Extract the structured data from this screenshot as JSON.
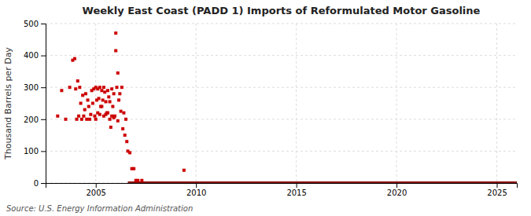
{
  "chart_data": {
    "type": "scatter",
    "title": "Weekly East Coast (PADD 1) Imports of Reformulated Motor Gasoline",
    "ylabel": "Thousand Barrels per Day",
    "annotations": [
      "Source: U.S. Energy Information Administration"
    ],
    "xlim": [
      2002.5,
      2026
    ],
    "ylim": [
      0,
      500
    ],
    "xticks": [
      2005,
      2010,
      2015,
      2020,
      2025
    ],
    "yticks": [
      0,
      100,
      200,
      300,
      400,
      500
    ],
    "grid": true,
    "series": [
      {
        "type": "line",
        "color": "#8b0000",
        "line_style": "solid",
        "x": [
          2006.6,
          2026
        ],
        "values": [
          2,
          2
        ]
      },
      {
        "type": "scatter",
        "color": "#cc0000",
        "marker": "square",
        "x": [
          2003.1,
          2003.3,
          2003.5,
          2003.7,
          2003.85,
          2003.95,
          2004.0,
          2004.05,
          2004.1,
          2004.15,
          2004.2,
          2004.25,
          2004.3,
          2004.35,
          2004.4,
          2004.45,
          2004.5,
          2004.55,
          2004.6,
          2004.65,
          2004.7,
          2004.75,
          2004.8,
          2004.85,
          2004.9,
          2004.95,
          2005.0,
          2005.0,
          2005.05,
          2005.1,
          2005.1,
          2005.15,
          2005.2,
          2005.2,
          2005.25,
          2005.3,
          2005.3,
          2005.35,
          2005.4,
          2005.4,
          2005.45,
          2005.5,
          2005.5,
          2005.55,
          2005.6,
          2005.6,
          2005.65,
          2005.7,
          2005.7,
          2005.75,
          2005.8,
          2005.8,
          2005.85,
          2005.9,
          2005.9,
          2005.95,
          2006.0,
          2006.0,
          2006.05,
          2006.1,
          2006.1,
          2006.15,
          2006.2,
          2006.25,
          2006.3,
          2006.35,
          2006.4,
          2006.45,
          2006.5,
          2006.55,
          2006.6,
          2006.7,
          2006.8,
          2006.9,
          2007.0,
          2007.1,
          2007.3,
          2009.4
        ],
        "values": [
          210,
          290,
          200,
          300,
          385,
          390,
          295,
          200,
          320,
          210,
          300,
          250,
          200,
          275,
          210,
          230,
          280,
          200,
          260,
          240,
          200,
          215,
          290,
          250,
          295,
          210,
          300,
          200,
          260,
          295,
          220,
          265,
          300,
          215,
          240,
          290,
          240,
          260,
          300,
          210,
          285,
          255,
          215,
          220,
          290,
          220,
          270,
          200,
          255,
          175,
          295,
          210,
          240,
          205,
          280,
          210,
          470,
          415,
          300,
          345,
          195,
          260,
          280,
          225,
          300,
          170,
          220,
          150,
          200,
          130,
          100,
          95,
          45,
          45,
          8,
          8,
          8,
          40
        ]
      }
    ]
  }
}
